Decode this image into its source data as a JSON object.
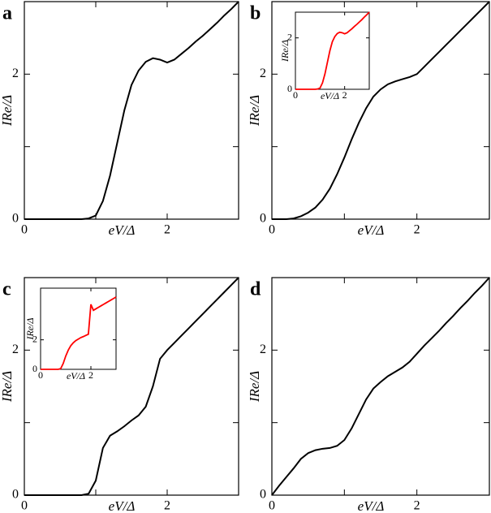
{
  "chart_data": [
    {
      "type": "line",
      "label": "a",
      "xlabel": "eV/Δ",
      "ylabel": "IRe/Δ",
      "x": [
        0,
        0.1,
        0.2,
        0.3,
        0.4,
        0.5,
        0.6,
        0.7,
        0.8,
        0.9,
        1.0,
        1.1,
        1.2,
        1.3,
        1.4,
        1.5,
        1.6,
        1.7,
        1.8,
        1.9,
        2.0,
        2.1,
        2.2,
        2.3,
        2.4,
        2.5,
        2.6,
        2.7,
        2.8,
        2.9,
        3.0
      ],
      "series": [
        {
          "color": "#000000",
          "values": [
            0,
            0,
            0,
            0,
            0,
            0,
            0,
            0,
            0,
            0.01,
            0.05,
            0.25,
            0.6,
            1.05,
            1.5,
            1.85,
            2.05,
            2.17,
            2.22,
            2.2,
            2.16,
            2.2,
            2.28,
            2.36,
            2.45,
            2.53,
            2.62,
            2.71,
            2.81,
            2.9,
            3.0
          ]
        }
      ],
      "xlim": [
        0,
        3
      ],
      "ylim": [
        0,
        3
      ],
      "xticks": [
        0,
        2
      ],
      "yticks": [
        0,
        2
      ],
      "xminor": [
        1
      ],
      "yminor": [
        1
      ]
    },
    {
      "type": "line",
      "label": "b",
      "xlabel": "eV/Δ",
      "ylabel": "IRe/Δ",
      "x": [
        0,
        0.1,
        0.2,
        0.3,
        0.4,
        0.5,
        0.6,
        0.7,
        0.8,
        0.9,
        1.0,
        1.1,
        1.2,
        1.3,
        1.4,
        1.5,
        1.6,
        1.7,
        1.8,
        1.9,
        2.0,
        2.1,
        2.2,
        2.3,
        2.4,
        2.5,
        2.6,
        2.7,
        2.8,
        2.9,
        3.0
      ],
      "series": [
        {
          "color": "#000000",
          "values": [
            0,
            0,
            0,
            0.01,
            0.04,
            0.09,
            0.16,
            0.27,
            0.42,
            0.62,
            0.85,
            1.1,
            1.33,
            1.53,
            1.69,
            1.79,
            1.86,
            1.9,
            1.93,
            1.96,
            2.0,
            2.1,
            2.2,
            2.3,
            2.4,
            2.5,
            2.6,
            2.7,
            2.8,
            2.9,
            3.0
          ]
        }
      ],
      "xlim": [
        0,
        3
      ],
      "ylim": [
        0,
        3
      ],
      "xticks": [
        0,
        2
      ],
      "yticks": [
        0,
        2
      ],
      "xminor": [
        1
      ],
      "yminor": [
        1
      ],
      "inset": {
        "xlabel": "eV/Δ",
        "ylabel": "IRe/Δ",
        "x": [
          0,
          0.1,
          0.2,
          0.3,
          0.4,
          0.5,
          0.6,
          0.7,
          0.8,
          0.9,
          1.0,
          1.1,
          1.2,
          1.3,
          1.4,
          1.5,
          1.6,
          1.7,
          1.8,
          1.9,
          2.0,
          2.1,
          2.2,
          2.3,
          2.4,
          2.5,
          2.6,
          2.7,
          2.8,
          2.9,
          3.0
        ],
        "series": [
          {
            "color": "#ff0000",
            "values": [
              0,
              0,
              0,
              0,
              0,
              0,
              0,
              0,
              0,
              0.01,
              0.05,
              0.25,
              0.6,
              1.05,
              1.5,
              1.85,
              2.05,
              2.17,
              2.22,
              2.2,
              2.16,
              2.2,
              2.28,
              2.36,
              2.45,
              2.53,
              2.62,
              2.71,
              2.81,
              2.9,
              3.0
            ]
          }
        ],
        "xlim": [
          0,
          3
        ],
        "ylim": [
          0,
          3
        ],
        "xticks": [
          0,
          2
        ],
        "yticks": [
          0,
          2
        ]
      }
    },
    {
      "type": "line",
      "label": "c",
      "xlabel": "eV/Δ",
      "ylabel": "IRe/Δ",
      "x": [
        0,
        0.1,
        0.2,
        0.3,
        0.4,
        0.5,
        0.6,
        0.7,
        0.8,
        0.9,
        1.0,
        1.1,
        1.2,
        1.3,
        1.4,
        1.5,
        1.6,
        1.7,
        1.8,
        1.9,
        2.0,
        2.1,
        2.2,
        2.3,
        2.4,
        2.5,
        2.6,
        2.7,
        2.8,
        2.9,
        3.0
      ],
      "series": [
        {
          "color": "#000000",
          "values": [
            0,
            0,
            0,
            0,
            0,
            0,
            0,
            0,
            0,
            0.02,
            0.2,
            0.65,
            0.82,
            0.88,
            0.95,
            1.03,
            1.1,
            1.22,
            1.5,
            1.88,
            2.0,
            2.1,
            2.2,
            2.3,
            2.4,
            2.5,
            2.6,
            2.7,
            2.8,
            2.9,
            3.0
          ]
        }
      ],
      "xlim": [
        0,
        3
      ],
      "ylim": [
        0,
        3
      ],
      "xticks": [
        0,
        2
      ],
      "yticks": [
        0,
        2
      ],
      "xminor": [
        1
      ],
      "yminor": [
        1
      ],
      "inset": {
        "xlabel": "eV/Δ",
        "ylabel": "IRe/Δ",
        "x": [
          0,
          0.1,
          0.2,
          0.3,
          0.4,
          0.5,
          0.6,
          0.7,
          0.8,
          0.9,
          1.0,
          1.1,
          1.2,
          1.3,
          1.4,
          1.5,
          1.6,
          1.7,
          1.8,
          1.9,
          2.0,
          2.1,
          2.2,
          2.3,
          2.4,
          2.5,
          2.6,
          2.7,
          2.8,
          2.9,
          3.0
        ],
        "series": [
          {
            "color": "#ff0000",
            "values": [
              0,
              0,
              0,
              0,
              0,
              0,
              0,
              0,
              0.05,
              0.4,
              0.9,
              1.3,
              1.6,
              1.8,
              1.95,
              2.05,
              2.15,
              2.22,
              2.3,
              2.38,
              4.4,
              4.0,
              4.1,
              4.2,
              4.3,
              4.4,
              4.5,
              4.6,
              4.7,
              4.8,
              4.9
            ]
          }
        ],
        "xlim": [
          0,
          3
        ],
        "ylim": [
          0,
          5.5
        ],
        "xticks": [
          0,
          2
        ],
        "yticks": [
          0,
          2
        ]
      }
    },
    {
      "type": "line",
      "label": "d",
      "xlabel": "eV/Δ",
      "ylabel": "IRe/Δ",
      "x": [
        0,
        0.1,
        0.2,
        0.3,
        0.4,
        0.5,
        0.6,
        0.7,
        0.8,
        0.9,
        1.0,
        1.1,
        1.2,
        1.3,
        1.4,
        1.5,
        1.6,
        1.7,
        1.8,
        1.9,
        2.0,
        2.1,
        2.2,
        2.3,
        2.4,
        2.5,
        2.6,
        2.7,
        2.8,
        2.9,
        3.0
      ],
      "series": [
        {
          "color": "#000000",
          "values": [
            0,
            0.13,
            0.25,
            0.37,
            0.5,
            0.58,
            0.62,
            0.64,
            0.65,
            0.68,
            0.76,
            0.92,
            1.12,
            1.32,
            1.47,
            1.56,
            1.64,
            1.7,
            1.76,
            1.84,
            1.95,
            2.06,
            2.16,
            2.26,
            2.37,
            2.47,
            2.58,
            2.68,
            2.79,
            2.89,
            3.0
          ]
        }
      ],
      "xlim": [
        0,
        3
      ],
      "ylim": [
        0,
        3
      ],
      "xticks": [
        0,
        2
      ],
      "yticks": [
        0,
        2
      ],
      "xminor": [
        1
      ],
      "yminor": [
        1
      ]
    }
  ]
}
